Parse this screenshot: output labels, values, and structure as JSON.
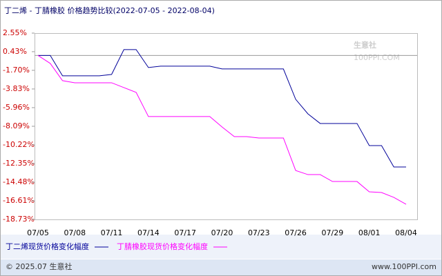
{
  "chart_data": {
    "type": "line",
    "title": "丁二烯 - 丁腈橡胶 价格趋势比较(2022-07-05 - 2022-08-04)",
    "categories": [
      "07/05",
      null,
      null,
      "07/08",
      null,
      null,
      "07/11",
      null,
      null,
      "07/14",
      null,
      null,
      "07/17",
      null,
      null,
      "07/20",
      null,
      null,
      "07/23",
      null,
      null,
      "07/26",
      null,
      null,
      "07/29",
      null,
      null,
      "08/01",
      null,
      null,
      "08/04"
    ],
    "series": [
      {
        "name": "丁二烯现货价格变化幅度",
        "color": "#000099",
        "values": [
          0,
          0,
          -2.33,
          -2.33,
          -2.33,
          -2.33,
          -2.17,
          0.67,
          0.67,
          -1.38,
          -1.22,
          -1.22,
          -1.22,
          -1.22,
          -1.22,
          -1.54,
          -1.54,
          -1.54,
          -1.54,
          -1.54,
          -1.54,
          -5.01,
          -6.67,
          -7.77,
          -7.77,
          -7.77,
          -7.77,
          -10.3,
          -10.3,
          -12.74,
          -12.74
        ]
      },
      {
        "name": "丁腈橡胶现货价格变化幅度",
        "color": "#ff00ff",
        "values": [
          0,
          -0.91,
          -2.88,
          -3.12,
          -3.12,
          -3.12,
          -3.12,
          -3.67,
          -4.22,
          -6.98,
          -6.98,
          -6.98,
          -6.98,
          -6.98,
          -6.98,
          -8.17,
          -9.27,
          -9.27,
          -9.43,
          -9.43,
          -9.43,
          -13.14,
          -13.61,
          -13.61,
          -14.4,
          -14.4,
          -14.4,
          -15.58,
          -15.66,
          -16.21,
          -17.0
        ]
      }
    ],
    "ylim": [
      -18.73,
      2.55
    ],
    "yticks": [
      {
        "value": 2.55,
        "label": "2.55%"
      },
      {
        "value": 0.43,
        "label": "0.43%"
      },
      {
        "value": -1.7,
        "label": "-1.70%"
      },
      {
        "value": -3.83,
        "label": "-3.83%"
      },
      {
        "value": -5.96,
        "label": "-5.96%"
      },
      {
        "value": -8.09,
        "label": "-8.09%"
      },
      {
        "value": -10.22,
        "label": "-10.22%"
      },
      {
        "value": -12.35,
        "label": "-12.35%"
      },
      {
        "value": -14.48,
        "label": "-14.48%"
      },
      {
        "value": -16.61,
        "label": "-16.61%"
      },
      {
        "value": -18.73,
        "label": "-18.73%"
      }
    ],
    "grid": false,
    "watermark": {
      "name": "生意社",
      "url": "100PPI.COM"
    },
    "footer": {
      "left": "© 2025.07 生意社",
      "right": "www.100PPI.com"
    }
  }
}
